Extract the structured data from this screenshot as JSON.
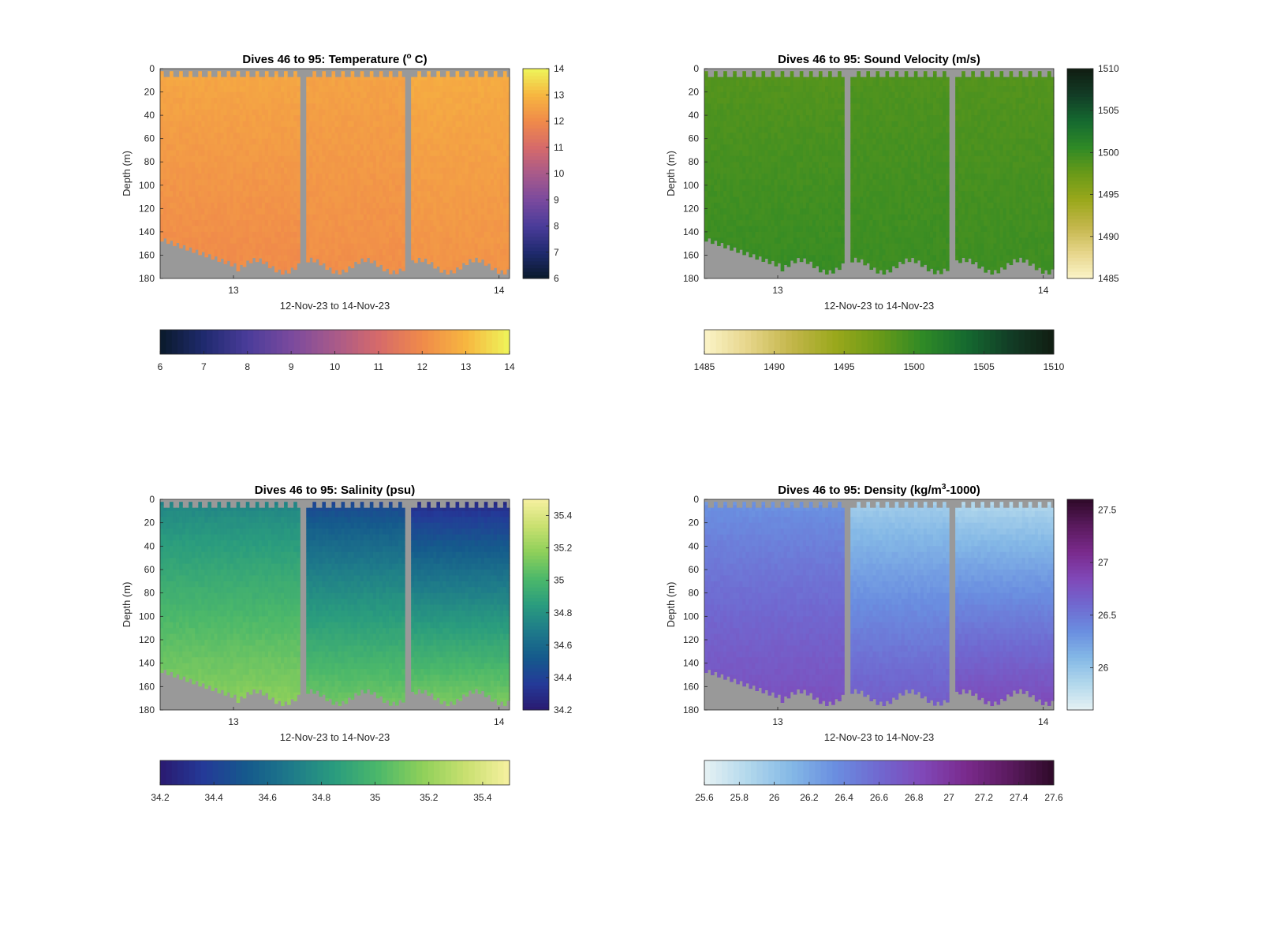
{
  "figure": {
    "background": "#ffffff",
    "no_data_color": "#999999"
  },
  "chart_data": [
    {
      "type": "heatmap",
      "id": "temperature",
      "title": "Dives 46 to 95: Temperature (",
      "title_sup": "o",
      "title_end": " C)",
      "xlabel": "12-Nov-23 to 14-Nov-23",
      "ylabel": "Depth (m)",
      "xticks": [
        "13",
        "14"
      ],
      "yticks": [
        "0",
        "20",
        "40",
        "60",
        "80",
        "100",
        "120",
        "140",
        "160",
        "180"
      ],
      "ylim": [
        0,
        180
      ],
      "y_reversed": true,
      "grid": false,
      "clim": [
        6,
        14
      ],
      "colorbar_ticks": [
        "6",
        "7",
        "8",
        "9",
        "10",
        "11",
        "12",
        "13",
        "14"
      ],
      "hcolorbar_ticks": [
        "6",
        "7",
        "8",
        "9",
        "10",
        "11",
        "12",
        "13",
        "14"
      ],
      "colormap": [
        "#0a1a2a",
        "#1f2a6e",
        "#4a3c9a",
        "#7a4a9e",
        "#a85a8a",
        "#d66a6a",
        "#f08a4a",
        "#f7b640",
        "#eef55a"
      ],
      "field": {
        "surface": 12.6,
        "deep": 12.1,
        "segments": [
          {
            "surface": 12.7,
            "deep": 12.0
          },
          {
            "surface": 12.6,
            "deep": 12.1
          },
          {
            "surface": 12.8,
            "deep": 12.2
          }
        ]
      }
    },
    {
      "type": "heatmap",
      "id": "sound_velocity",
      "title": "Dives 46 to 95: Sound Velocity (m/s)",
      "xlabel": "12-Nov-23 to 14-Nov-23",
      "ylabel": "Depth (m)",
      "xticks": [
        "13",
        "14"
      ],
      "yticks": [
        "0",
        "20",
        "40",
        "60",
        "80",
        "100",
        "120",
        "140",
        "160",
        "180"
      ],
      "ylim": [
        0,
        180
      ],
      "y_reversed": true,
      "grid": false,
      "clim": [
        1485,
        1510
      ],
      "colorbar_ticks": [
        "1485",
        "1490",
        "1495",
        "1500",
        "1505",
        "1510"
      ],
      "hcolorbar_ticks": [
        "1485",
        "1490",
        "1495",
        "1500",
        "1505",
        "1510"
      ],
      "colormap": [
        "#fbf4c8",
        "#e6d58a",
        "#c3b64a",
        "#9aa81c",
        "#6a9a18",
        "#2f8a26",
        "#156a30",
        "#123d26",
        "#111d12"
      ],
      "field": {
        "surface": 1498.6,
        "deep": 1500.0,
        "segments": [
          {
            "surface": 1498.5,
            "deep": 1500.2
          },
          {
            "surface": 1498.8,
            "deep": 1500.0
          },
          {
            "surface": 1498.6,
            "deep": 1499.9
          }
        ]
      }
    },
    {
      "type": "heatmap",
      "id": "salinity",
      "title": "Dives 46 to 95: Salinity (psu)",
      "xlabel": "12-Nov-23 to 14-Nov-23",
      "ylabel": "Depth (m)",
      "xticks": [
        "13",
        "14"
      ],
      "yticks": [
        "0",
        "20",
        "40",
        "60",
        "80",
        "100",
        "120",
        "140",
        "160",
        "180"
      ],
      "ylim": [
        0,
        180
      ],
      "y_reversed": true,
      "grid": false,
      "clim": [
        34.2,
        35.5
      ],
      "colorbar_ticks": [
        "34.2",
        "34.4",
        "34.6",
        "34.8",
        "35",
        "35.2",
        "35.4"
      ],
      "hcolorbar_ticks": [
        "34.2",
        "34.4",
        "34.6",
        "34.8",
        "35",
        "35.2",
        "35.4"
      ],
      "colormap": [
        "#2a1a70",
        "#243a98",
        "#155a8c",
        "#1e7a8a",
        "#2a9c7e",
        "#4cb86a",
        "#8ed05a",
        "#c9e070",
        "#f6f0a0"
      ],
      "field": {
        "surface": 34.75,
        "deep": 35.15,
        "segments": [
          {
            "surface": 34.72,
            "deep": 35.18
          },
          {
            "surface": 34.4,
            "deep": 35.12
          },
          {
            "surface": 34.25,
            "deep": 35.15
          }
        ]
      }
    },
    {
      "type": "heatmap",
      "id": "density",
      "title": "Dives 46 to 95: Density (kg/m",
      "title_sup": "3",
      "title_end": "-1000)",
      "xlabel": "12-Nov-23 to 14-Nov-23",
      "ylabel": "Depth (m)",
      "xticks": [
        "13",
        "14"
      ],
      "yticks": [
        "0",
        "20",
        "40",
        "60",
        "80",
        "100",
        "120",
        "140",
        "160",
        "180"
      ],
      "ylim": [
        0,
        180
      ],
      "y_reversed": true,
      "grid": false,
      "clim": [
        25.6,
        27.6
      ],
      "colorbar_ticks": [
        "26",
        "26.5",
        "27",
        "27.5"
      ],
      "hcolorbar_ticks": [
        "25.6",
        "25.8",
        "26",
        "26.2",
        "26.4",
        "26.6",
        "26.8",
        "27",
        "27.2",
        "27.4",
        "27.6"
      ],
      "colormap": [
        "#e6f2f4",
        "#b2d8ec",
        "#84b8e6",
        "#6a8ee0",
        "#7068d0",
        "#8048b8",
        "#7a2a8c",
        "#5a1a5e",
        "#2e0a28"
      ],
      "field": {
        "surface": 26.3,
        "deep": 26.8,
        "segments": [
          {
            "surface": 26.3,
            "deep": 26.8
          },
          {
            "surface": 25.9,
            "deep": 26.7
          },
          {
            "surface": 25.8,
            "deep": 26.85
          }
        ]
      }
    }
  ]
}
